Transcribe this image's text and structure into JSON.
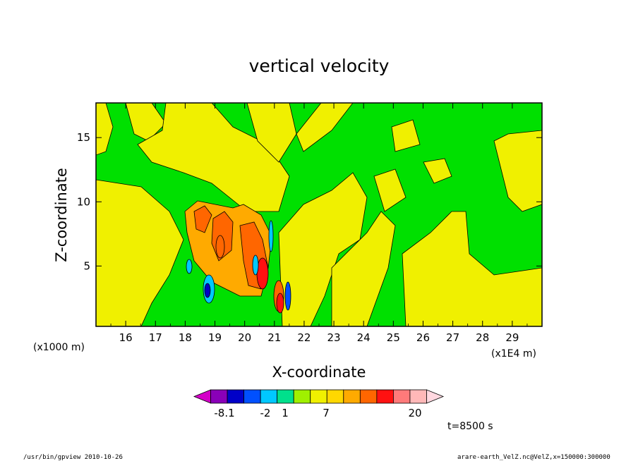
{
  "chart_data": {
    "type": "heatmap",
    "title": "vertical velocity",
    "xlabel": "X-coordinate",
    "ylabel": "Z-coordinate",
    "x_scale_note": "(x1E4 m)",
    "y_scale_note": "(x1000 m)",
    "xlim": [
      15.0,
      30.0
    ],
    "ylim": [
      0.3,
      17.7
    ],
    "x_ticks": [
      16,
      17,
      18,
      19,
      20,
      21,
      22,
      23,
      24,
      25,
      26,
      27,
      28,
      29
    ],
    "x_tick_labels": [
      "16",
      "17",
      "18",
      "19",
      "20",
      "21",
      "22",
      "23",
      "24",
      "25",
      "26",
      "27",
      "28",
      "29"
    ],
    "y_ticks": [
      5,
      10,
      15
    ],
    "y_tick_labels": [
      "5",
      "10",
      "15"
    ],
    "colorbar": {
      "segment_colors": [
        "#d400c8",
        "#8a00b8",
        "#0000c8",
        "#0050ff",
        "#00c8ff",
        "#00e08c",
        "#a0f000",
        "#f0f000",
        "#ffd800",
        "#ffaa00",
        "#ff6600",
        "#ff1111",
        "#ff7a7a",
        "#ffb8b8",
        "#ffd8e0"
      ],
      "labels": [
        "-8.1",
        "-2",
        "1",
        "7",
        "20"
      ]
    },
    "features": [
      {
        "x": 19.9,
        "z": 7.0,
        "level": "positive-moderate",
        "desc": "orange updraft core"
      },
      {
        "x": 20.7,
        "z": 4.2,
        "level": "positive-strong"
      },
      {
        "x": 21.3,
        "z": 1.8,
        "level": "positive-strong"
      },
      {
        "x": 18.8,
        "z": 3.2,
        "level": "negative-strong"
      },
      {
        "x": 20.4,
        "z": 4.8,
        "level": "negative-moderate"
      }
    ]
  },
  "annotations": {
    "time": "t=8500 s",
    "footer_left": "/usr/bin/gpview  2010-10-26",
    "footer_right": "arare-earth_VelZ.nc@VelZ,x=150000:300000"
  },
  "colors": {
    "green": "#00e000",
    "yellow": "#f0f000",
    "orange": "#ffaa00",
    "dark_orange": "#ff6600",
    "red": "#ff1111",
    "cyan": "#00c8ff",
    "blue": "#0000c8"
  }
}
